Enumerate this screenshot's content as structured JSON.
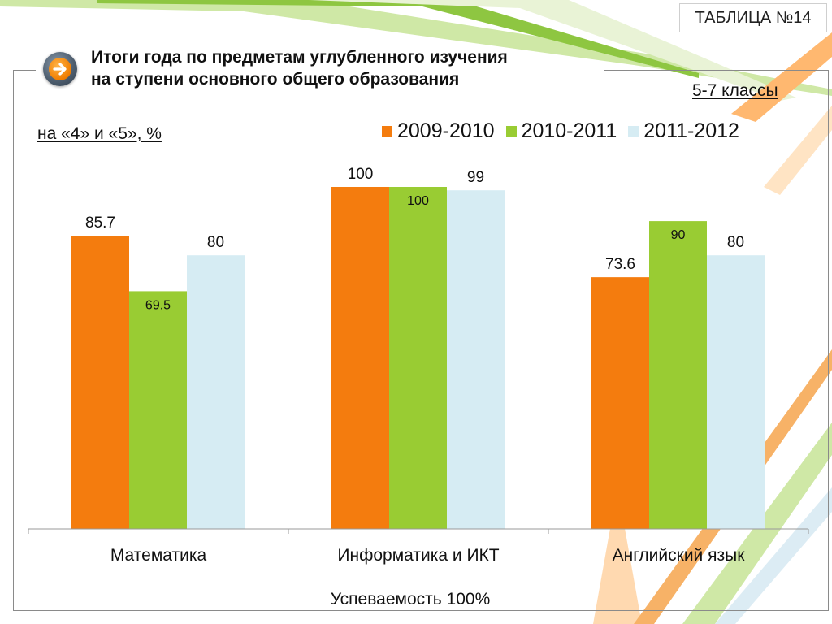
{
  "badge": "ТАБЛИЦА №14",
  "title_lines": [
    "Итоги года по предметам углубленного изучения",
    "на ступени основного общего образования"
  ],
  "grade_label": "5-7 классы",
  "footer": "Успеваемость 100%",
  "colors": {
    "orange": "#f47c0e",
    "green": "#99cc33",
    "lightblue": "#d6ecf3"
  },
  "icons": {
    "nav_button": "arrow-right-icon"
  },
  "chart_data": {
    "type": "bar",
    "ylabel": "на «4» и «5», %",
    "categories": [
      "Математика",
      "Информатика и ИКТ",
      "Английский язык"
    ],
    "ylim": [
      0,
      120
    ],
    "grid": false,
    "legend_position": "top-right",
    "series": [
      {
        "name": "2009-2010",
        "color": "#f47c0e",
        "values": [
          85.7,
          100,
          73.6
        ],
        "labels": [
          "85.7",
          "100",
          "73.6"
        ]
      },
      {
        "name": "2010-2011",
        "color": "#99cc33",
        "values": [
          69.5,
          100,
          90
        ],
        "labels": [
          "69.5",
          "100",
          "90"
        ]
      },
      {
        "name": "2011-2012",
        "color": "#d6ecf3",
        "values": [
          80,
          99,
          80
        ],
        "labels": [
          "80",
          "99",
          "80"
        ]
      }
    ]
  }
}
